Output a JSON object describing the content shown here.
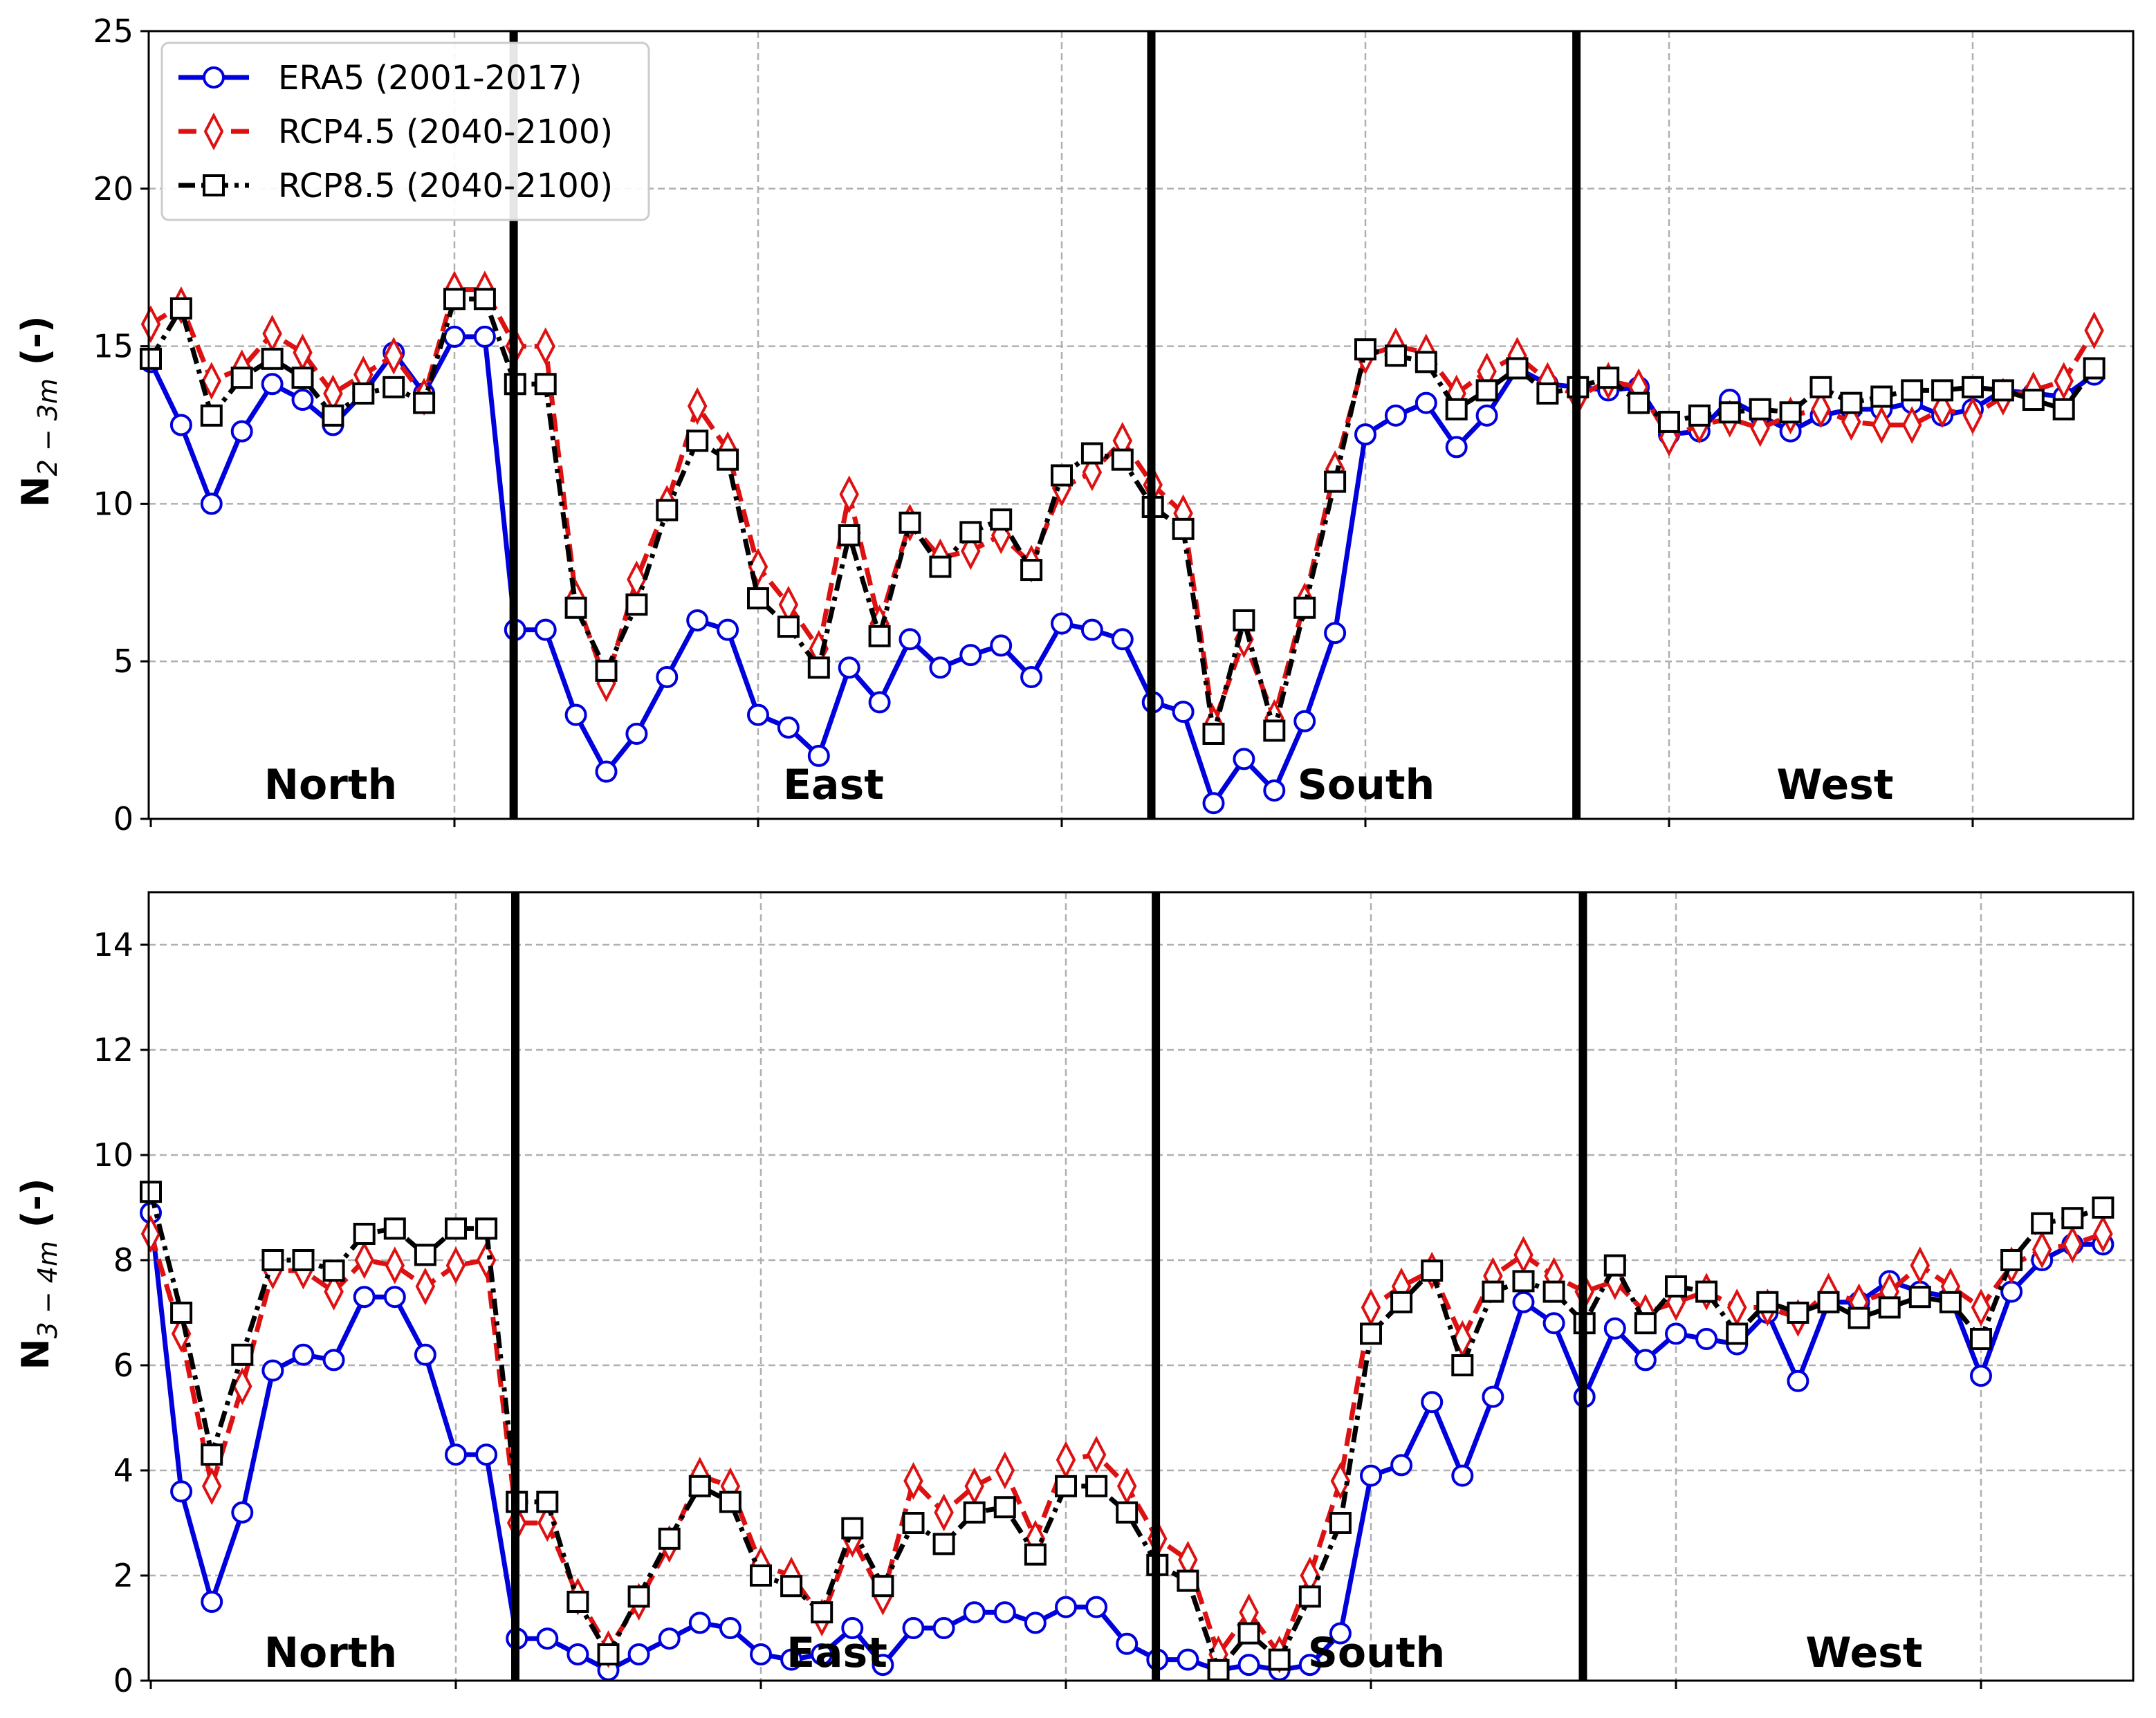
{
  "chart_data": [
    {
      "type": "line",
      "ylabel_main": "N",
      "ylabel_sub": "2 − 3m",
      "ylabel_unit": " (-)",
      "ylim": [
        0,
        25
      ],
      "yticks": [
        0,
        5,
        10,
        15,
        20,
        25
      ],
      "ytick_labels": [
        "0",
        "5",
        "10",
        "15",
        "20",
        "25"
      ],
      "regions": [
        "North",
        "East",
        "South",
        "West"
      ],
      "region_dividers": [
        12,
        33,
        47
      ],
      "legend": [
        "ERA5 (2001-2017)",
        "RCP4.5 (2040-2100)",
        "RCP8.5 (2040-2100)"
      ],
      "legend_position": "top-left",
      "grid": true,
      "series": [
        {
          "name": "ERA5 (2001-2017)",
          "color": "#0000dd",
          "marker": "circle",
          "values": [
            14.5,
            12.5,
            10.0,
            12.3,
            13.8,
            13.3,
            12.5,
            13.5,
            14.8,
            13.5,
            15.3,
            15.3,
            6.0,
            6.0,
            3.3,
            1.5,
            2.7,
            4.5,
            6.3,
            6.0,
            3.3,
            2.9,
            2.0,
            4.8,
            3.7,
            5.7,
            4.8,
            5.2,
            5.5,
            4.5,
            6.2,
            6.0,
            5.7,
            3.7,
            3.4,
            0.5,
            1.9,
            0.9,
            3.1,
            5.9,
            12.2,
            12.8,
            13.2,
            11.8,
            12.8,
            14.3,
            13.8,
            13.7,
            13.6,
            13.7,
            12.2,
            12.3,
            13.3,
            12.8,
            12.3,
            12.8,
            13.0,
            13.0,
            13.2,
            12.8,
            13.0,
            13.6,
            13.5,
            13.4,
            14.1
          ]
        },
        {
          "name": "RCP4.5 (2040-2100)",
          "color": "#dd1111",
          "marker": "diamond",
          "values": [
            15.7,
            16.3,
            13.9,
            14.3,
            15.4,
            14.8,
            13.5,
            14.1,
            14.7,
            13.4,
            16.8,
            16.8,
            15.0,
            15.0,
            7.0,
            4.3,
            7.6,
            10.0,
            13.1,
            11.7,
            8.0,
            6.8,
            5.4,
            10.3,
            6.2,
            9.4,
            8.3,
            8.5,
            9.0,
            8.1,
            10.5,
            11.0,
            12.0,
            10.6,
            9.7,
            3.0,
            5.7,
            3.2,
            6.9,
            11.1,
            14.7,
            15.0,
            14.8,
            13.5,
            14.2,
            14.7,
            13.9,
            13.4,
            13.9,
            13.7,
            12.1,
            12.5,
            12.7,
            12.4,
            12.8,
            13.0,
            12.6,
            12.5,
            12.5,
            13.0,
            12.8,
            13.4,
            13.6,
            13.9,
            15.5
          ]
        },
        {
          "name": "RCP8.5 (2040-2100)",
          "color": "#000000",
          "marker": "square",
          "values": [
            14.6,
            16.2,
            12.8,
            14.0,
            14.6,
            14.0,
            12.8,
            13.5,
            13.7,
            13.2,
            16.5,
            16.5,
            13.8,
            13.8,
            6.7,
            4.7,
            6.8,
            9.8,
            12.0,
            11.4,
            7.0,
            6.1,
            4.8,
            9.0,
            5.8,
            9.4,
            8.0,
            9.1,
            9.5,
            7.9,
            10.9,
            11.6,
            11.4,
            9.9,
            9.2,
            2.7,
            6.3,
            2.8,
            6.7,
            10.7,
            14.9,
            14.7,
            14.5,
            13.0,
            13.6,
            14.3,
            13.5,
            13.7,
            14.0,
            13.2,
            12.6,
            12.8,
            12.9,
            13.0,
            12.9,
            13.7,
            13.2,
            13.4,
            13.6,
            13.6,
            13.7,
            13.6,
            13.3,
            13.0,
            14.3
          ]
        }
      ]
    },
    {
      "type": "line",
      "ylabel_main": "N",
      "ylabel_sub": "3 − 4m",
      "ylabel_unit": " (-)",
      "ylim": [
        0,
        15
      ],
      "yticks": [
        0,
        2,
        4,
        6,
        8,
        10,
        12,
        14
      ],
      "ytick_labels": [
        "0",
        "2",
        "4",
        "6",
        "8",
        "10",
        "12",
        "14"
      ],
      "regions": [
        "North",
        "East",
        "South",
        "West"
      ],
      "region_dividers": [
        12,
        33,
        47
      ],
      "grid": true,
      "series": [
        {
          "name": "ERA5 (2001-2017)",
          "color": "#0000dd",
          "marker": "circle",
          "values": [
            8.9,
            3.6,
            1.5,
            3.2,
            5.9,
            6.2,
            6.1,
            7.3,
            7.3,
            6.2,
            4.3,
            4.3,
            0.8,
            0.8,
            0.5,
            0.2,
            0.5,
            0.8,
            1.1,
            1.0,
            0.5,
            0.4,
            0.5,
            1.0,
            0.3,
            1.0,
            1.0,
            1.3,
            1.3,
            1.1,
            1.4,
            1.4,
            0.7,
            0.4,
            0.4,
            0.2,
            0.3,
            0.2,
            0.3,
            0.9,
            3.9,
            4.1,
            5.3,
            3.9,
            5.4,
            7.2,
            6.8,
            5.4,
            6.7,
            6.1,
            6.6,
            6.5,
            6.4,
            7.0,
            5.7,
            7.2,
            7.2,
            7.6,
            7.4,
            7.3,
            5.8,
            7.4,
            8.0,
            8.3,
            8.3
          ]
        },
        {
          "name": "RCP4.5 (2040-2100)",
          "color": "#dd1111",
          "marker": "diamond",
          "values": [
            8.5,
            6.6,
            3.7,
            5.6,
            7.8,
            7.8,
            7.4,
            8.0,
            7.9,
            7.5,
            7.9,
            8.0,
            3.0,
            3.0,
            1.6,
            0.6,
            1.5,
            2.6,
            3.9,
            3.7,
            2.2,
            2.0,
            1.2,
            2.7,
            1.6,
            3.8,
            3.2,
            3.7,
            4.0,
            2.7,
            4.2,
            4.3,
            3.7,
            2.7,
            2.3,
            0.5,
            1.3,
            0.5,
            2.0,
            3.8,
            7.1,
            7.5,
            7.8,
            6.5,
            7.7,
            8.1,
            7.7,
            7.4,
            7.6,
            7.0,
            7.2,
            7.4,
            7.1,
            7.1,
            6.9,
            7.4,
            7.2,
            7.4,
            7.9,
            7.5,
            7.1,
            7.9,
            8.2,
            8.3,
            8.5
          ]
        },
        {
          "name": "RCP8.5 (2040-2100)",
          "color": "#000000",
          "marker": "square",
          "values": [
            9.3,
            7.0,
            4.3,
            6.2,
            8.0,
            8.0,
            7.8,
            8.5,
            8.6,
            8.1,
            8.6,
            8.6,
            3.4,
            3.4,
            1.5,
            0.5,
            1.6,
            2.7,
            3.7,
            3.4,
            2.0,
            1.8,
            1.3,
            2.9,
            1.8,
            3.0,
            2.6,
            3.2,
            3.3,
            2.4,
            3.7,
            3.7,
            3.2,
            2.2,
            1.9,
            0.2,
            0.9,
            0.4,
            1.6,
            3.0,
            6.6,
            7.2,
            7.8,
            6.0,
            7.4,
            7.6,
            7.4,
            6.8,
            7.9,
            6.8,
            7.5,
            7.4,
            6.6,
            7.2,
            7.0,
            7.2,
            6.9,
            7.1,
            7.3,
            7.2,
            6.5,
            8.0,
            8.7,
            8.8,
            9.0
          ]
        }
      ]
    }
  ]
}
